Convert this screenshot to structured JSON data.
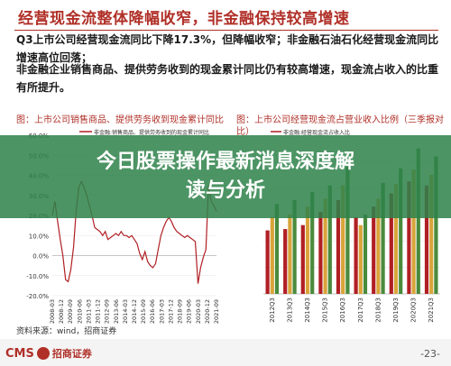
{
  "header": {
    "title": "经营现金流整体降幅收窄，非金融保持较高增速"
  },
  "body": {
    "para1": "Q3上市公司经营现金流同比下降17.3%，但降幅收窄；非金融石油石化经营现金流同比增速高位回落；",
    "para2": "非金融企业销售商品、提供劳务收到的现金累计同比仍有较高增速，现金流占收入的比重有所提升。"
  },
  "banner": {
    "line1": "今日股票操作最新消息深度解",
    "line2": "读与分析"
  },
  "source": "资料来源：wind，招商证券",
  "footer": {
    "logo": "CMS",
    "logo_cn": "招商证券",
    "page": "-23-"
  },
  "colors": {
    "accent": "#b03028",
    "banner": "#2f824a",
    "series_red": "#b01f24",
    "series_gold": "#d9a43a",
    "series_green": "#4a8a3c"
  },
  "chart_data": [
    {
      "type": "line",
      "title": "图：上市公司销售商品、提供劳务收到现金累计同比",
      "legend": [
        "非金融:销售商品、提供劳务收到的现金累计同比"
      ],
      "ylim": [
        -20,
        60
      ],
      "y_ticks": [
        "-20.0%",
        "-10.0%",
        "0.0%",
        "10.0%",
        "20.0%",
        "30.0%",
        "40.0%",
        "50.0%",
        "60.0%"
      ],
      "x_ticks": [
        "2008-03",
        "2008-12",
        "2009-09",
        "2010-06",
        "2011-03",
        "2011-12",
        "2012-09",
        "2013-06",
        "2014-03",
        "2014-12",
        "2015-09",
        "2016-06",
        "2017-03",
        "2017-12",
        "2018-09",
        "2019-06",
        "2020-03",
        "2020-12",
        "2021-09"
      ],
      "series": [
        {
          "name": "非金融:销售商品、提供劳务收到的现金累计同比",
          "values": [
            20,
            27,
            17,
            8,
            0,
            -12,
            -13,
            -7,
            4,
            22,
            34,
            37,
            34,
            30,
            25,
            20,
            14,
            13,
            12,
            10,
            12,
            8,
            9,
            10,
            11,
            10,
            12,
            10,
            10,
            9,
            10,
            8,
            6,
            1,
            -2,
            2,
            -3,
            -5,
            -6,
            -4,
            3,
            10,
            14,
            17,
            19,
            17,
            14,
            12,
            11,
            10,
            9,
            10,
            9,
            8,
            7,
            -14,
            -6,
            -1,
            3,
            35,
            27,
            25,
            22
          ]
        }
      ]
    },
    {
      "type": "bar",
      "title": "图：上市公司经营现金流占营业收入比例（三季报对比）",
      "legend": [
        "非金融:经营现金流占收入比"
      ],
      "categories": [
        "2012Q3",
        "2013Q3",
        "2014Q3",
        "2015Q3",
        "2016Q3",
        "2017Q3",
        "2018Q3",
        "2019Q3",
        "2020Q3",
        "2021Q3"
      ],
      "ylim": [
        0,
        0.12
      ],
      "series": [
        {
          "name": "red",
          "values": [
            0.048,
            0.049,
            0.052,
            0.062,
            0.071,
            0.058,
            0.066,
            0.076,
            0.085,
            0.082
          ]
        },
        {
          "name": "gold",
          "values": [
            0.058,
            0.06,
            0.066,
            0.072,
            0.082,
            0.052,
            0.072,
            0.083,
            0.094,
            0.09
          ]
        },
        {
          "name": "green",
          "values": [
            0.068,
            0.071,
            0.077,
            0.082,
            0.096,
            0.06,
            0.084,
            0.095,
            0.11,
            0.104
          ]
        }
      ]
    }
  ]
}
